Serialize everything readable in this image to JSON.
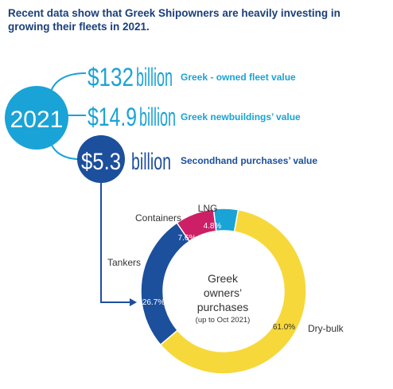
{
  "headline": "Recent data show that Greek Shipowners are heavily investing in growing their fleets in 2021.",
  "year": "2021",
  "stats": [
    {
      "value": "$132",
      "unit": "billion",
      "label": "Greek - owned fleet value"
    },
    {
      "value": "$14.9",
      "unit": "billion",
      "label": "Greek newbuildings’ value"
    },
    {
      "value": "$5.3",
      "unit": "billion",
      "label": "Secondhand purchases’ value"
    }
  ],
  "colors": {
    "headline": "#1a3f7a",
    "light_blue": "#1aa3d6",
    "dark_blue": "#1c4f9c",
    "dry_bulk": "#f7d83a",
    "tankers": "#1c4f9c",
    "containers": "#cc1f66",
    "lng": "#1aa3d6"
  },
  "chart_data": {
    "type": "pie",
    "title": "Greek owners’ purchases",
    "subtitle": "(up to Oct 2021)",
    "center_lines": [
      "Greek",
      "owners’",
      "purchases"
    ],
    "unit": "%",
    "slices": [
      {
        "label": "LNG",
        "value": 4.8,
        "value_label": "4.8%"
      },
      {
        "label": "Dry-bulk",
        "value": 61.0,
        "value_label": "61.0%"
      },
      {
        "label": "Tankers",
        "value": 26.7,
        "value_label": "26.7%"
      },
      {
        "label": "Containers",
        "value": 7.6,
        "value_label": "7.6%"
      }
    ]
  }
}
